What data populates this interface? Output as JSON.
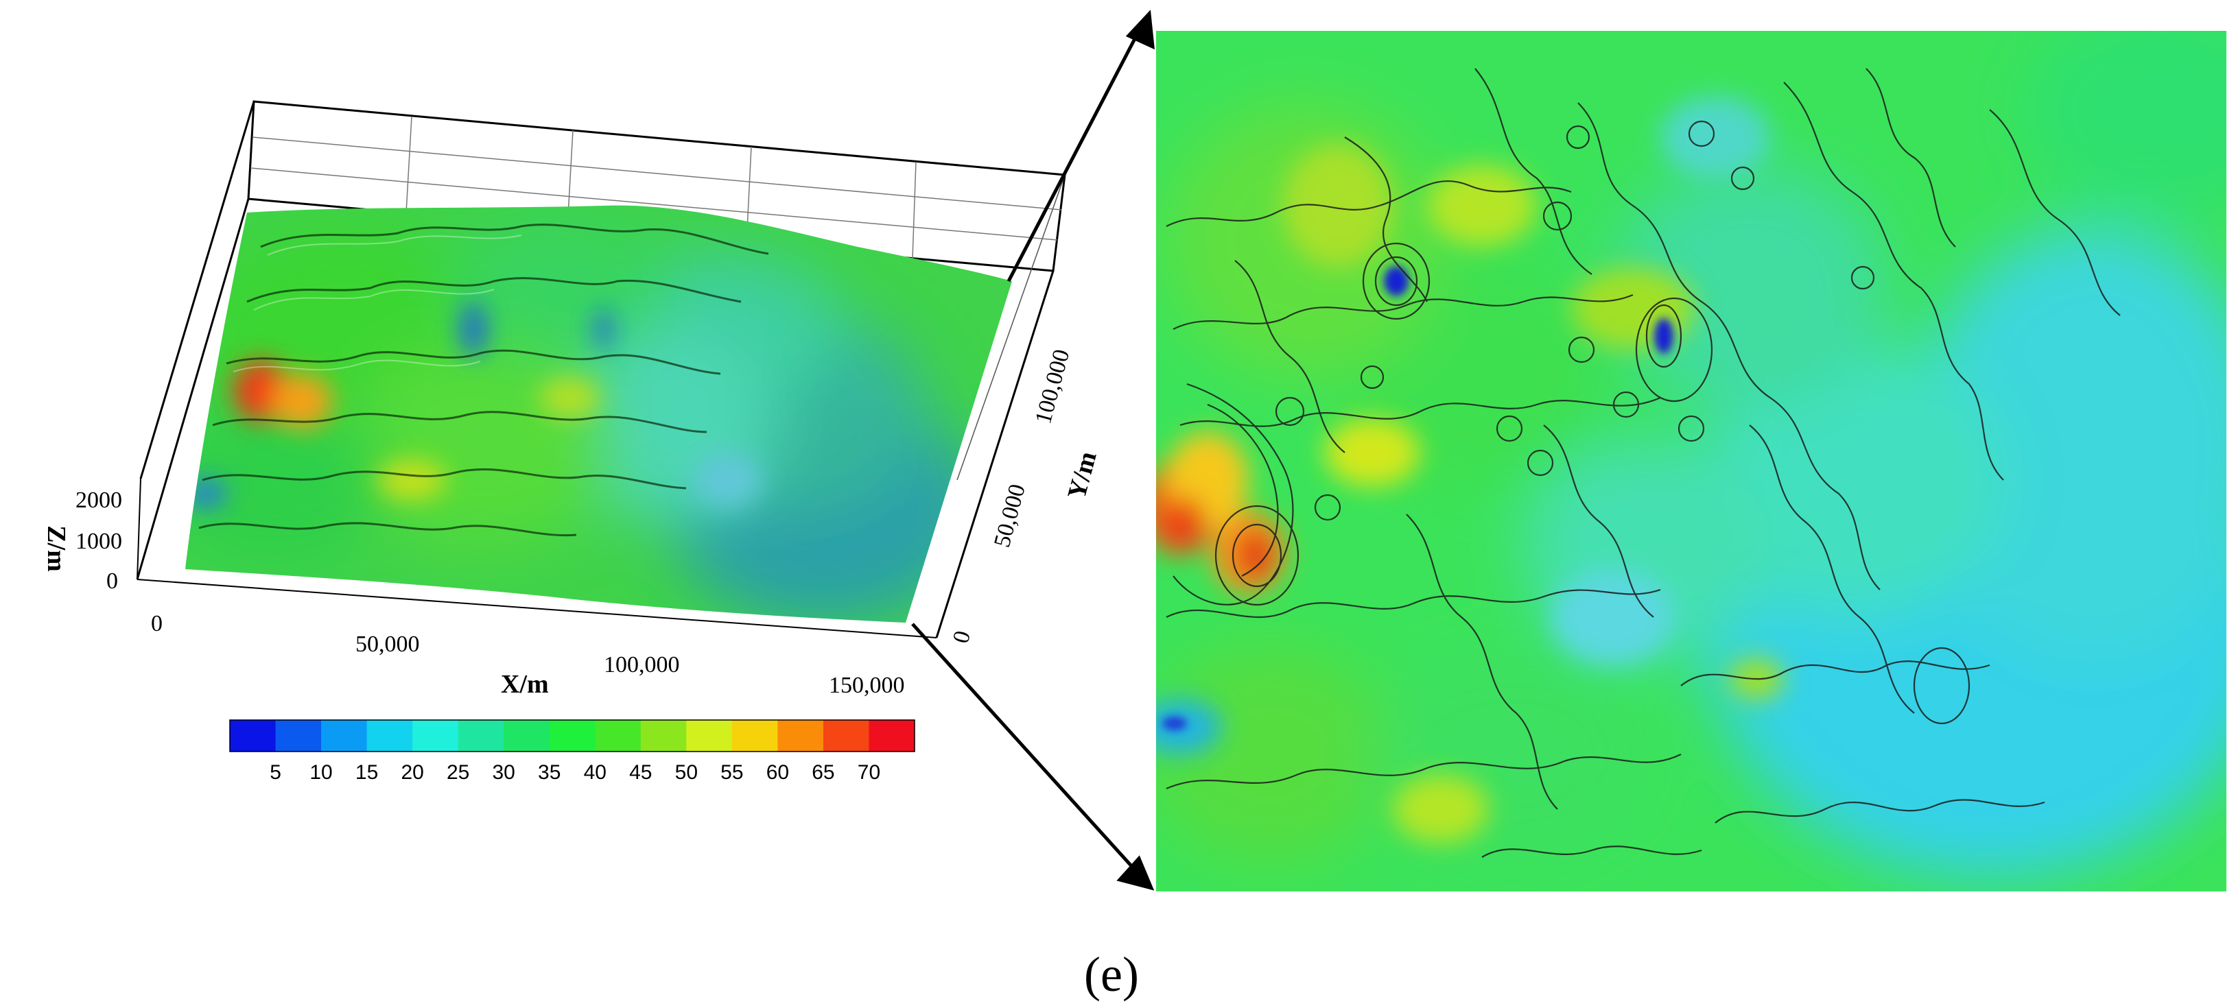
{
  "panel_label": "(e)",
  "surface": {
    "x_axis": {
      "title": "X/m",
      "ticks": [
        "0",
        "50,000",
        "100,000",
        "150,000"
      ]
    },
    "y_axis": {
      "title": "Y/m",
      "ticks": [
        "0",
        "50,000",
        "100,000"
      ]
    },
    "z_axis": {
      "title": "Z/m",
      "ticks": [
        "0",
        "1000",
        "2000"
      ]
    }
  },
  "colorbar": {
    "ticks": [
      "5",
      "10",
      "15",
      "20",
      "25",
      "30",
      "35",
      "40",
      "45",
      "50",
      "55",
      "60",
      "65",
      "70"
    ],
    "colors": [
      "#0a14e6",
      "#0a5af0",
      "#0a9cf5",
      "#12d2f0",
      "#1ef0dc",
      "#1ee6a0",
      "#1ee664",
      "#1ef03c",
      "#46e628",
      "#8ce61e",
      "#d2f01e",
      "#f5d20a",
      "#fa8c0a",
      "#f54614",
      "#f00f1e"
    ]
  },
  "contour_map": {
    "contours": true
  }
}
